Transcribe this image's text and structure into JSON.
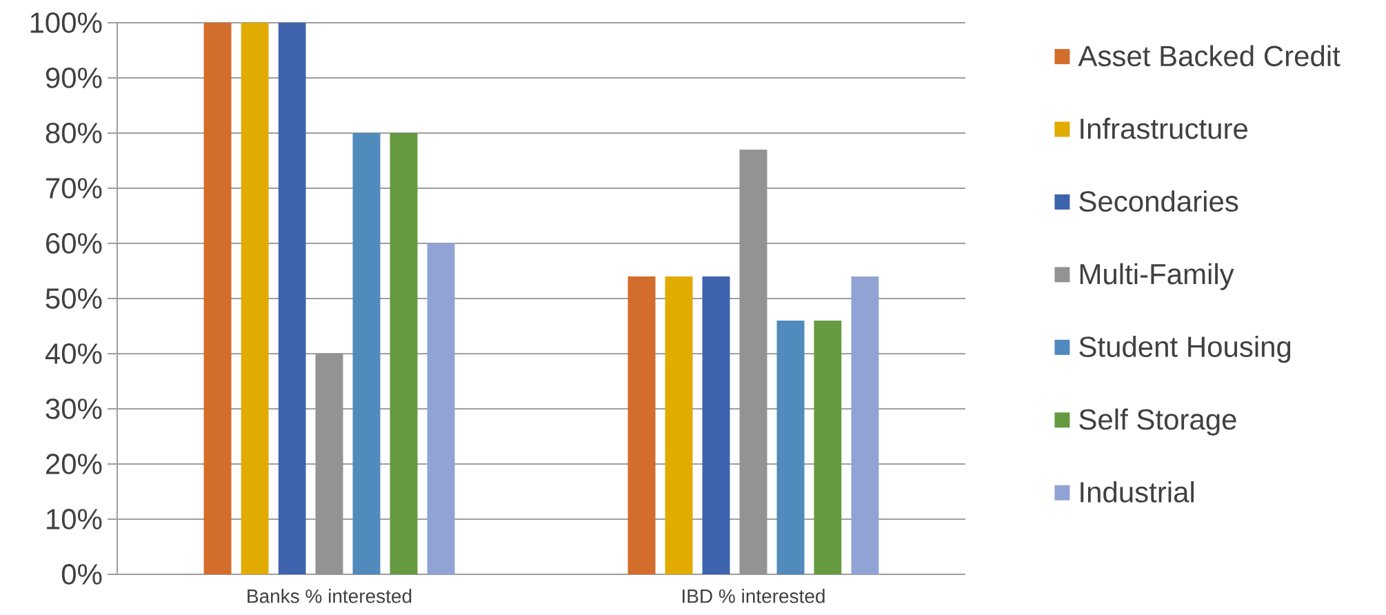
{
  "chart_data": {
    "type": "bar",
    "categories": [
      "Banks % interested",
      "IBD % interested"
    ],
    "series": [
      {
        "name": "Asset Backed Credit",
        "color": "#d36d2b",
        "values": [
          100,
          54
        ]
      },
      {
        "name": "Infrastructure",
        "color": "#e1ab00",
        "values": [
          100,
          54
        ]
      },
      {
        "name": "Secondaries",
        "color": "#3d64ad",
        "values": [
          100,
          54
        ]
      },
      {
        "name": "Multi-Family",
        "color": "#939393",
        "values": [
          40,
          77
        ]
      },
      {
        "name": "Student Housing",
        "color": "#518abc",
        "values": [
          80,
          46
        ]
      },
      {
        "name": "Self Storage",
        "color": "#659a40",
        "values": [
          80,
          46
        ]
      },
      {
        "name": "Industrial",
        "color": "#90a3d4",
        "values": [
          60,
          54
        ]
      }
    ],
    "ylim": [
      0,
      100
    ],
    "yticks": [
      {
        "value": 0,
        "label": "0%"
      },
      {
        "value": 10,
        "label": "10%"
      },
      {
        "value": 20,
        "label": "20%"
      },
      {
        "value": 30,
        "label": "30%"
      },
      {
        "value": 40,
        "label": "40%"
      },
      {
        "value": 50,
        "label": "50%"
      },
      {
        "value": 60,
        "label": "60%"
      },
      {
        "value": 70,
        "label": "70%"
      },
      {
        "value": 80,
        "label": "80%"
      },
      {
        "value": 90,
        "label": "90%"
      },
      {
        "value": 100,
        "label": "100%"
      }
    ],
    "grid": "y",
    "legend": "right"
  }
}
